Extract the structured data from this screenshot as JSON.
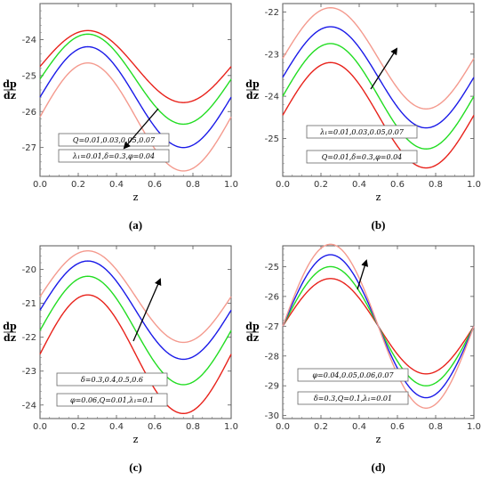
{
  "chart_data": [
    {
      "panel_label": "(a)",
      "type": "line",
      "xlabel": "z",
      "ylabel_num": "dp",
      "ylabel_den": "dz",
      "xlim": [
        0.0,
        1.0
      ],
      "ylim": [
        -27.8,
        -23.0
      ],
      "xticks": [
        "0.0",
        "0.2",
        "0.4",
        "0.6",
        "0.8",
        "1.0"
      ],
      "xtick_values": [
        0.0,
        0.2,
        0.4,
        0.6,
        0.8,
        1.0
      ],
      "yticks": [
        "-24",
        "-25",
        "-26",
        "-27"
      ],
      "ytick_values": [
        -24,
        -25,
        -26,
        -27
      ],
      "series": [
        {
          "color": "#e8221b",
          "offset": -24.75,
          "amplitude": 1.0
        },
        {
          "color": "#22dd22",
          "offset": -25.1,
          "amplitude": 1.25
        },
        {
          "color": "#1a1ae8",
          "offset": -25.6,
          "amplitude": 1.4
        },
        {
          "color": "#f49a8e",
          "offset": -26.15,
          "amplitude": 1.5
        }
      ],
      "annotations": [
        "Q=0.01,0.03,0.05,0.07",
        "λ₁=0.01,δ=0.3,φ=0.04"
      ],
      "arrow": "down-left"
    },
    {
      "panel_label": "(b)",
      "type": "line",
      "xlabel": "z",
      "ylabel_num": "dp",
      "ylabel_den": "dz",
      "xlim": [
        0.0,
        1.0
      ],
      "ylim": [
        -25.9,
        -21.8
      ],
      "xticks": [
        "0.0",
        "0.2",
        "0.4",
        "0.6",
        "0.8",
        "1.0"
      ],
      "xtick_values": [
        0.0,
        0.2,
        0.4,
        0.6,
        0.8,
        1.0
      ],
      "yticks": [
        "-22",
        "-23",
        "-24",
        "-25"
      ],
      "ytick_values": [
        -22,
        -23,
        -24,
        -25
      ],
      "series": [
        {
          "color": "#e8221b",
          "offset": -24.45,
          "amplitude": 1.25
        },
        {
          "color": "#22dd22",
          "offset": -24.0,
          "amplitude": 1.25
        },
        {
          "color": "#1a1ae8",
          "offset": -23.55,
          "amplitude": 1.2
        },
        {
          "color": "#f49a8e",
          "offset": -23.1,
          "amplitude": 1.2
        }
      ],
      "annotations": [
        "λ₁=0.01,0.03,0.05,0.07",
        "Q=0.01,δ=0.3,φ=0.04"
      ],
      "arrow": "up-right"
    },
    {
      "panel_label": "(c)",
      "type": "line",
      "xlabel": "z",
      "ylabel_num": "dp",
      "ylabel_den": "dz",
      "xlim": [
        0.0,
        1.0
      ],
      "ylim": [
        -24.4,
        -19.3
      ],
      "xticks": [
        "0.0",
        "0.2",
        "0.4",
        "0.6",
        "0.8",
        "1.0"
      ],
      "xtick_values": [
        0.0,
        0.2,
        0.4,
        0.6,
        0.8,
        1.0
      ],
      "yticks": [
        "-20",
        "-21",
        "-22",
        "-23",
        "-24"
      ],
      "ytick_values": [
        -20,
        -21,
        -22,
        -23,
        -24
      ],
      "series": [
        {
          "color": "#e8221b",
          "offset": -22.5,
          "amplitude": 1.75
        },
        {
          "color": "#22dd22",
          "offset": -21.8,
          "amplitude": 1.6
        },
        {
          "color": "#1a1ae8",
          "offset": -21.2,
          "amplitude": 1.45
        },
        {
          "color": "#f49a8e",
          "offset": -20.8,
          "amplitude": 1.35
        }
      ],
      "annotations": [
        "δ=0.3,0.4,0.5,0.6",
        "φ=0.06,Q=0.01,λ₁=0.1"
      ],
      "arrow": "up-right"
    },
    {
      "panel_label": "(d)",
      "type": "line",
      "xlabel": "z",
      "ylabel_num": "dp",
      "ylabel_den": "dz",
      "xlim": [
        0.0,
        1.0
      ],
      "ylim": [
        -30.1,
        -24.3
      ],
      "xticks": [
        "0.0",
        "0.2",
        "0.4",
        "0.6",
        "0.8",
        "1.0"
      ],
      "xtick_values": [
        0.0,
        0.2,
        0.4,
        0.6,
        0.8,
        1.0
      ],
      "yticks": [
        "-25",
        "-26",
        "-27",
        "-28",
        "-29",
        "-30"
      ],
      "ytick_values": [
        -25,
        -26,
        -27,
        -28,
        -29,
        -30
      ],
      "series": [
        {
          "color": "#e8221b",
          "offset": -27.0,
          "amplitude": 1.6
        },
        {
          "color": "#22dd22",
          "offset": -27.0,
          "amplitude": 2.0
        },
        {
          "color": "#1a1ae8",
          "offset": -27.0,
          "amplitude": 2.4
        },
        {
          "color": "#f49a8e",
          "offset": -27.0,
          "amplitude": 2.75
        }
      ],
      "annotations": [
        "φ=0.04,0.05,0.06,0.07",
        "δ=0.3,Q=0.1,λ₁=0.01"
      ],
      "arrow": "up-right"
    }
  ]
}
